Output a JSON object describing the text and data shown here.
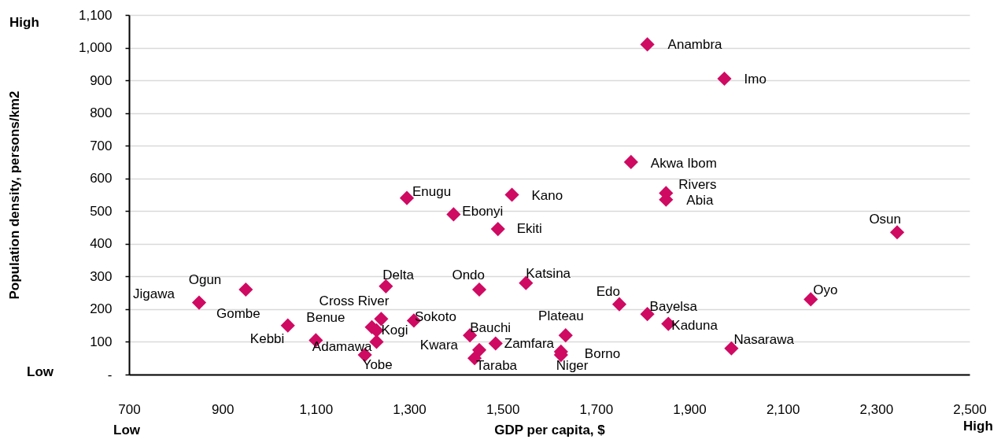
{
  "chart_data": {
    "type": "scatter",
    "xlabel": "GDP per capita, $",
    "ylabel": "Population density, persons/km2",
    "x": [
      1810,
      1975,
      1775,
      1850,
      1850,
      1295,
      1520,
      1395,
      1490,
      2345,
      850,
      950,
      1250,
      1450,
      1550,
      1750,
      2160,
      1240,
      1810,
      1040,
      1220,
      1310,
      1855,
      1230,
      1430,
      1635,
      1100,
      1230,
      1485,
      1450,
      1990,
      1625,
      1625,
      1205,
      1440
    ],
    "values": [
      1010,
      905,
      650,
      555,
      535,
      540,
      550,
      490,
      445,
      435,
      220,
      260,
      270,
      260,
      280,
      215,
      230,
      170,
      185,
      150,
      145,
      165,
      155,
      135,
      120,
      120,
      105,
      100,
      95,
      75,
      80,
      70,
      60,
      60,
      50
    ],
    "color": "#cf0a62",
    "marker": "diamond",
    "grid": "y",
    "xlim": [
      700,
      2500
    ],
    "xticks": [
      700,
      900,
      {
        "value": 1100,
        "label": "1,100"
      },
      {
        "value": 1300,
        "label": "1,300"
      },
      {
        "value": 1500,
        "label": "1,500"
      },
      {
        "value": 1700,
        "label": "1,700"
      },
      {
        "value": 1900,
        "label": "1,900"
      },
      {
        "value": 2100,
        "label": "2,100"
      },
      {
        "value": 2300,
        "label": "2,300"
      },
      {
        "value": 2500,
        "label": "2,500"
      }
    ],
    "ylim": [
      0,
      1100
    ],
    "yticks": [
      {
        "value": 0,
        "label": "-"
      },
      100,
      200,
      300,
      400,
      500,
      600,
      700,
      800,
      900,
      {
        "value": 1000,
        "label": "1,000"
      },
      {
        "value": 1100,
        "label": "1,100"
      }
    ],
    "annotations": [
      "High",
      "Low",
      "Low",
      "High",
      {
        "text": "Anambra",
        "x": 1810,
        "y": 1010
      },
      {
        "text": "Imo",
        "x": 1975,
        "y": 905
      },
      {
        "text": "Akwa Ibom",
        "x": 1775,
        "y": 650
      },
      {
        "text": "Rivers",
        "x": 1850,
        "y": 555
      },
      {
        "text": "Abia",
        "x": 1850,
        "y": 535
      },
      {
        "text": "Enugu",
        "x": 1295,
        "y": 540
      },
      {
        "text": "Kano",
        "x": 1520,
        "y": 550
      },
      {
        "text": "Ebonyi",
        "x": 1395,
        "y": 490
      },
      {
        "text": "Ekiti",
        "x": 1490,
        "y": 445
      },
      {
        "text": "Osun",
        "x": 2345,
        "y": 435
      },
      {
        "text": "Jigawa",
        "x": 850,
        "y": 220
      },
      {
        "text": "Ogun",
        "x": 950,
        "y": 260
      },
      {
        "text": "Delta",
        "x": 1250,
        "y": 270
      },
      {
        "text": "Ondo",
        "x": 1450,
        "y": 260
      },
      {
        "text": "Katsina",
        "x": 1550,
        "y": 280
      },
      {
        "text": "Edo",
        "x": 1750,
        "y": 215
      },
      {
        "text": "Oyo",
        "x": 2160,
        "y": 230
      },
      {
        "text": "Cross River",
        "x": 1240,
        "y": 170
      },
      {
        "text": "Bayelsa",
        "x": 1810,
        "y": 185
      },
      {
        "text": "Gombe",
        "x": 1040,
        "y": 150
      },
      {
        "text": "Benue",
        "x": 1220,
        "y": 145
      },
      {
        "text": "Sokoto",
        "x": 1310,
        "y": 165
      },
      {
        "text": "Kaduna",
        "x": 1855,
        "y": 155
      },
      {
        "text": "Kogi",
        "x": 1230,
        "y": 135
      },
      {
        "text": "Bauchi",
        "x": 1430,
        "y": 120
      },
      {
        "text": "Plateau",
        "x": 1635,
        "y": 120
      },
      {
        "text": "Kebbi",
        "x": 1100,
        "y": 105
      },
      {
        "text": "Adamawa",
        "x": 1230,
        "y": 100
      },
      {
        "text": "Zamfara",
        "x": 1485,
        "y": 95
      },
      {
        "text": "Kwara",
        "x": 1450,
        "y": 75
      },
      {
        "text": "Nasarawa",
        "x": 1990,
        "y": 80
      },
      {
        "text": "Borno",
        "x": 1625,
        "y": 70
      },
      {
        "text": "Niger",
        "x": 1625,
        "y": 60
      },
      {
        "text": "Yobe",
        "x": 1205,
        "y": 60
      },
      {
        "text": "Taraba",
        "x": 1440,
        "y": 50
      }
    ]
  }
}
